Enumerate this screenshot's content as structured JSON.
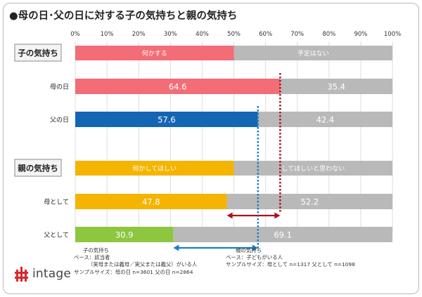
{
  "chart_data": {
    "type": "bar",
    "title": "●母の日･父の日に対する子の気持ちと親の気持ち",
    "xlim": [
      0,
      100
    ],
    "x_ticks": [
      "0%",
      "10%",
      "20%",
      "30%",
      "40%",
      "50%",
      "60%",
      "70%",
      "80%",
      "90%",
      "100%"
    ],
    "grid": true,
    "groups": [
      {
        "label": "子の気持ち",
        "legend": [
          "何かする",
          "予定はない"
        ],
        "colors": [
          "#f26d75",
          "#b9b9b9"
        ],
        "rows": [
          {
            "category": "母の日",
            "values": [
              64.6,
              35.4
            ],
            "labels": [
              "64.6",
              "35.4"
            ],
            "color": "#f26d75"
          },
          {
            "category": "父の日",
            "values": [
              57.6,
              42.4
            ],
            "labels": [
              "57.6",
              "42.4"
            ],
            "color": "#1565b5"
          }
        ]
      },
      {
        "label": "親の気持ち",
        "legend": [
          "何かしてほしい",
          "してほしいと思わない"
        ],
        "colors": [
          "#f5b400",
          "#b9b9b9"
        ],
        "rows": [
          {
            "category": "母として",
            "values": [
              47.8,
              52.2
            ],
            "labels": [
              "47.8",
              "52.2"
            ],
            "color": "#f5b400"
          },
          {
            "category": "父として",
            "values": [
              30.9,
              69.1
            ],
            "labels": [
              "30.9",
              "69.1"
            ],
            "color": "#8dc63f"
          }
        ]
      }
    ]
  },
  "notes": {
    "left": [
      "子の気持ち",
      "ベース：該当者",
      "（実母または義母／実父または義父）がいる人",
      "サンプルサイズ：母の日 n=3601 父の日 n=2864"
    ],
    "right": [
      "親の気持ち",
      "ベース：子どもがいる人",
      "サンプルサイズ：母として n=1317 父として n=1098"
    ]
  },
  "logo": {
    "text": "intage",
    "color": "#d7282f"
  }
}
